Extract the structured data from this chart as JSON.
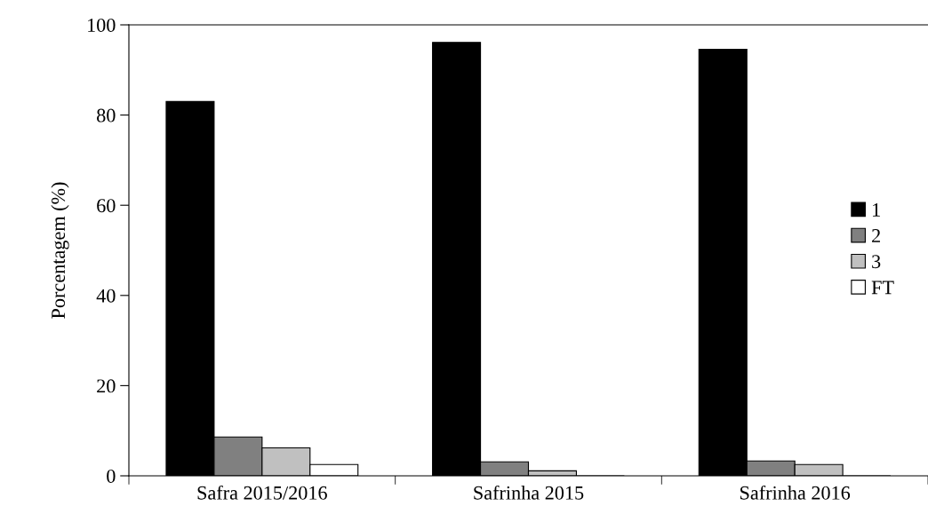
{
  "chart_data": {
    "type": "bar",
    "ylabel": "Porcentagem (%)",
    "categories": [
      "Safra 2015/2016",
      "Safrinha 2015",
      "Safrinha 2016"
    ],
    "series": [
      {
        "name": "1",
        "color": "#000000",
        "values": [
          83,
          96.1,
          94.6
        ]
      },
      {
        "name": "2",
        "color": "#808080",
        "values": [
          8.6,
          3.1,
          3.3
        ]
      },
      {
        "name": "3",
        "color": "#c0c0c0",
        "values": [
          6.2,
          1.1,
          2.5
        ]
      },
      {
        "name": "FT",
        "color": "#ffffff",
        "values": [
          2.5,
          0,
          0
        ]
      }
    ],
    "ylim": [
      0,
      100
    ],
    "yticks": [
      0,
      20,
      40,
      60,
      80,
      100
    ],
    "grid": false,
    "legend": "right"
  }
}
